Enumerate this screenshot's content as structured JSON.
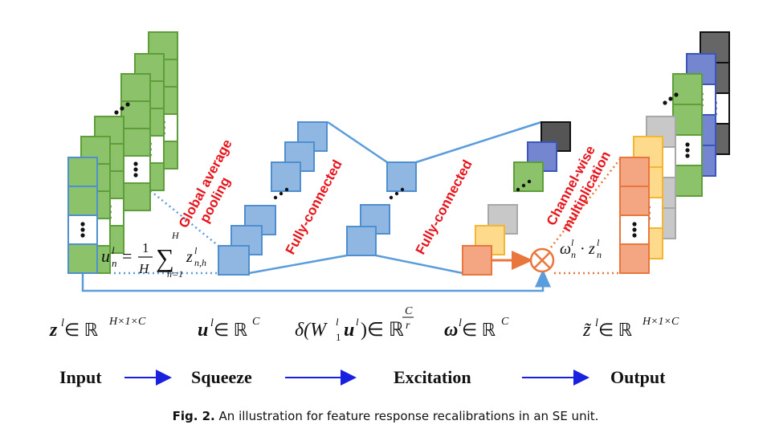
{
  "colors": {
    "green": "#8cc36a",
    "green_border": "#5e9e3a",
    "blue": "#8fb7e2",
    "blue_border": "#4f8fd0",
    "dblue": "#7386cf",
    "dblue_border": "#3b55b8",
    "grey": "#c8c8c8",
    "black": "#555555",
    "orange": "#f4a582",
    "orange_border": "#e9763c",
    "yellow": "#fedb8c",
    "yellow_border": "#f6b530",
    "red_text": "#e8141c",
    "arrow_blue": "#1a20e0",
    "line_blue": "#5a9cdc"
  },
  "labels": {
    "gap": "Global average pooling",
    "fc1": "Fully-connected",
    "fc2": "Fully-connected",
    "cwm": "Channel-wise multiplication"
  },
  "formulas": {
    "un_lhs": "u",
    "un_sup": "l",
    "un_sub": "n",
    "un_eq": "=",
    "frac_num": "1",
    "frac_den": "H",
    "sum_top": "H",
    "sum_bot": "h=1",
    "sum_sym": "∑",
    "z_term": "z",
    "z_sup": "l",
    "z_sub": "n,h",
    "scale_w": "ω",
    "scale_w_sup": "l",
    "scale_w_sub": "n",
    "scale_dot": "·",
    "scale_z": "z",
    "scale_z_sup": "l",
    "scale_z_sub": "n",
    "otimes": "⊗"
  },
  "shapes": {
    "z": {
      "var": "z",
      "sup": "l",
      "rel": " ∈ ℝ",
      "dims": "H×1×C"
    },
    "u": {
      "var": "u",
      "sup": "l",
      "rel": " ∈ ℝ",
      "dims": "C"
    },
    "delta": {
      "pre": "δ(W",
      "sub": "1",
      "sup": "l",
      "mid": "u",
      "sup2": "l",
      "post": ")∈ ℝ",
      "frac_num": "C",
      "frac_den": "r"
    },
    "omega": {
      "var": "ω",
      "sup": "l",
      "rel": " ∈ ℝ",
      "dims": "C"
    },
    "zt": {
      "var": "z̃",
      "sup": "l",
      "rel": " ∈ ℝ",
      "dims": "H×1×C"
    }
  },
  "flow": [
    "Input",
    "Squeeze",
    "Excitation",
    "Output"
  ],
  "caption": {
    "label": "Fig. 2.",
    "text": " An illustration for feature response recalibrations in an SE unit."
  }
}
